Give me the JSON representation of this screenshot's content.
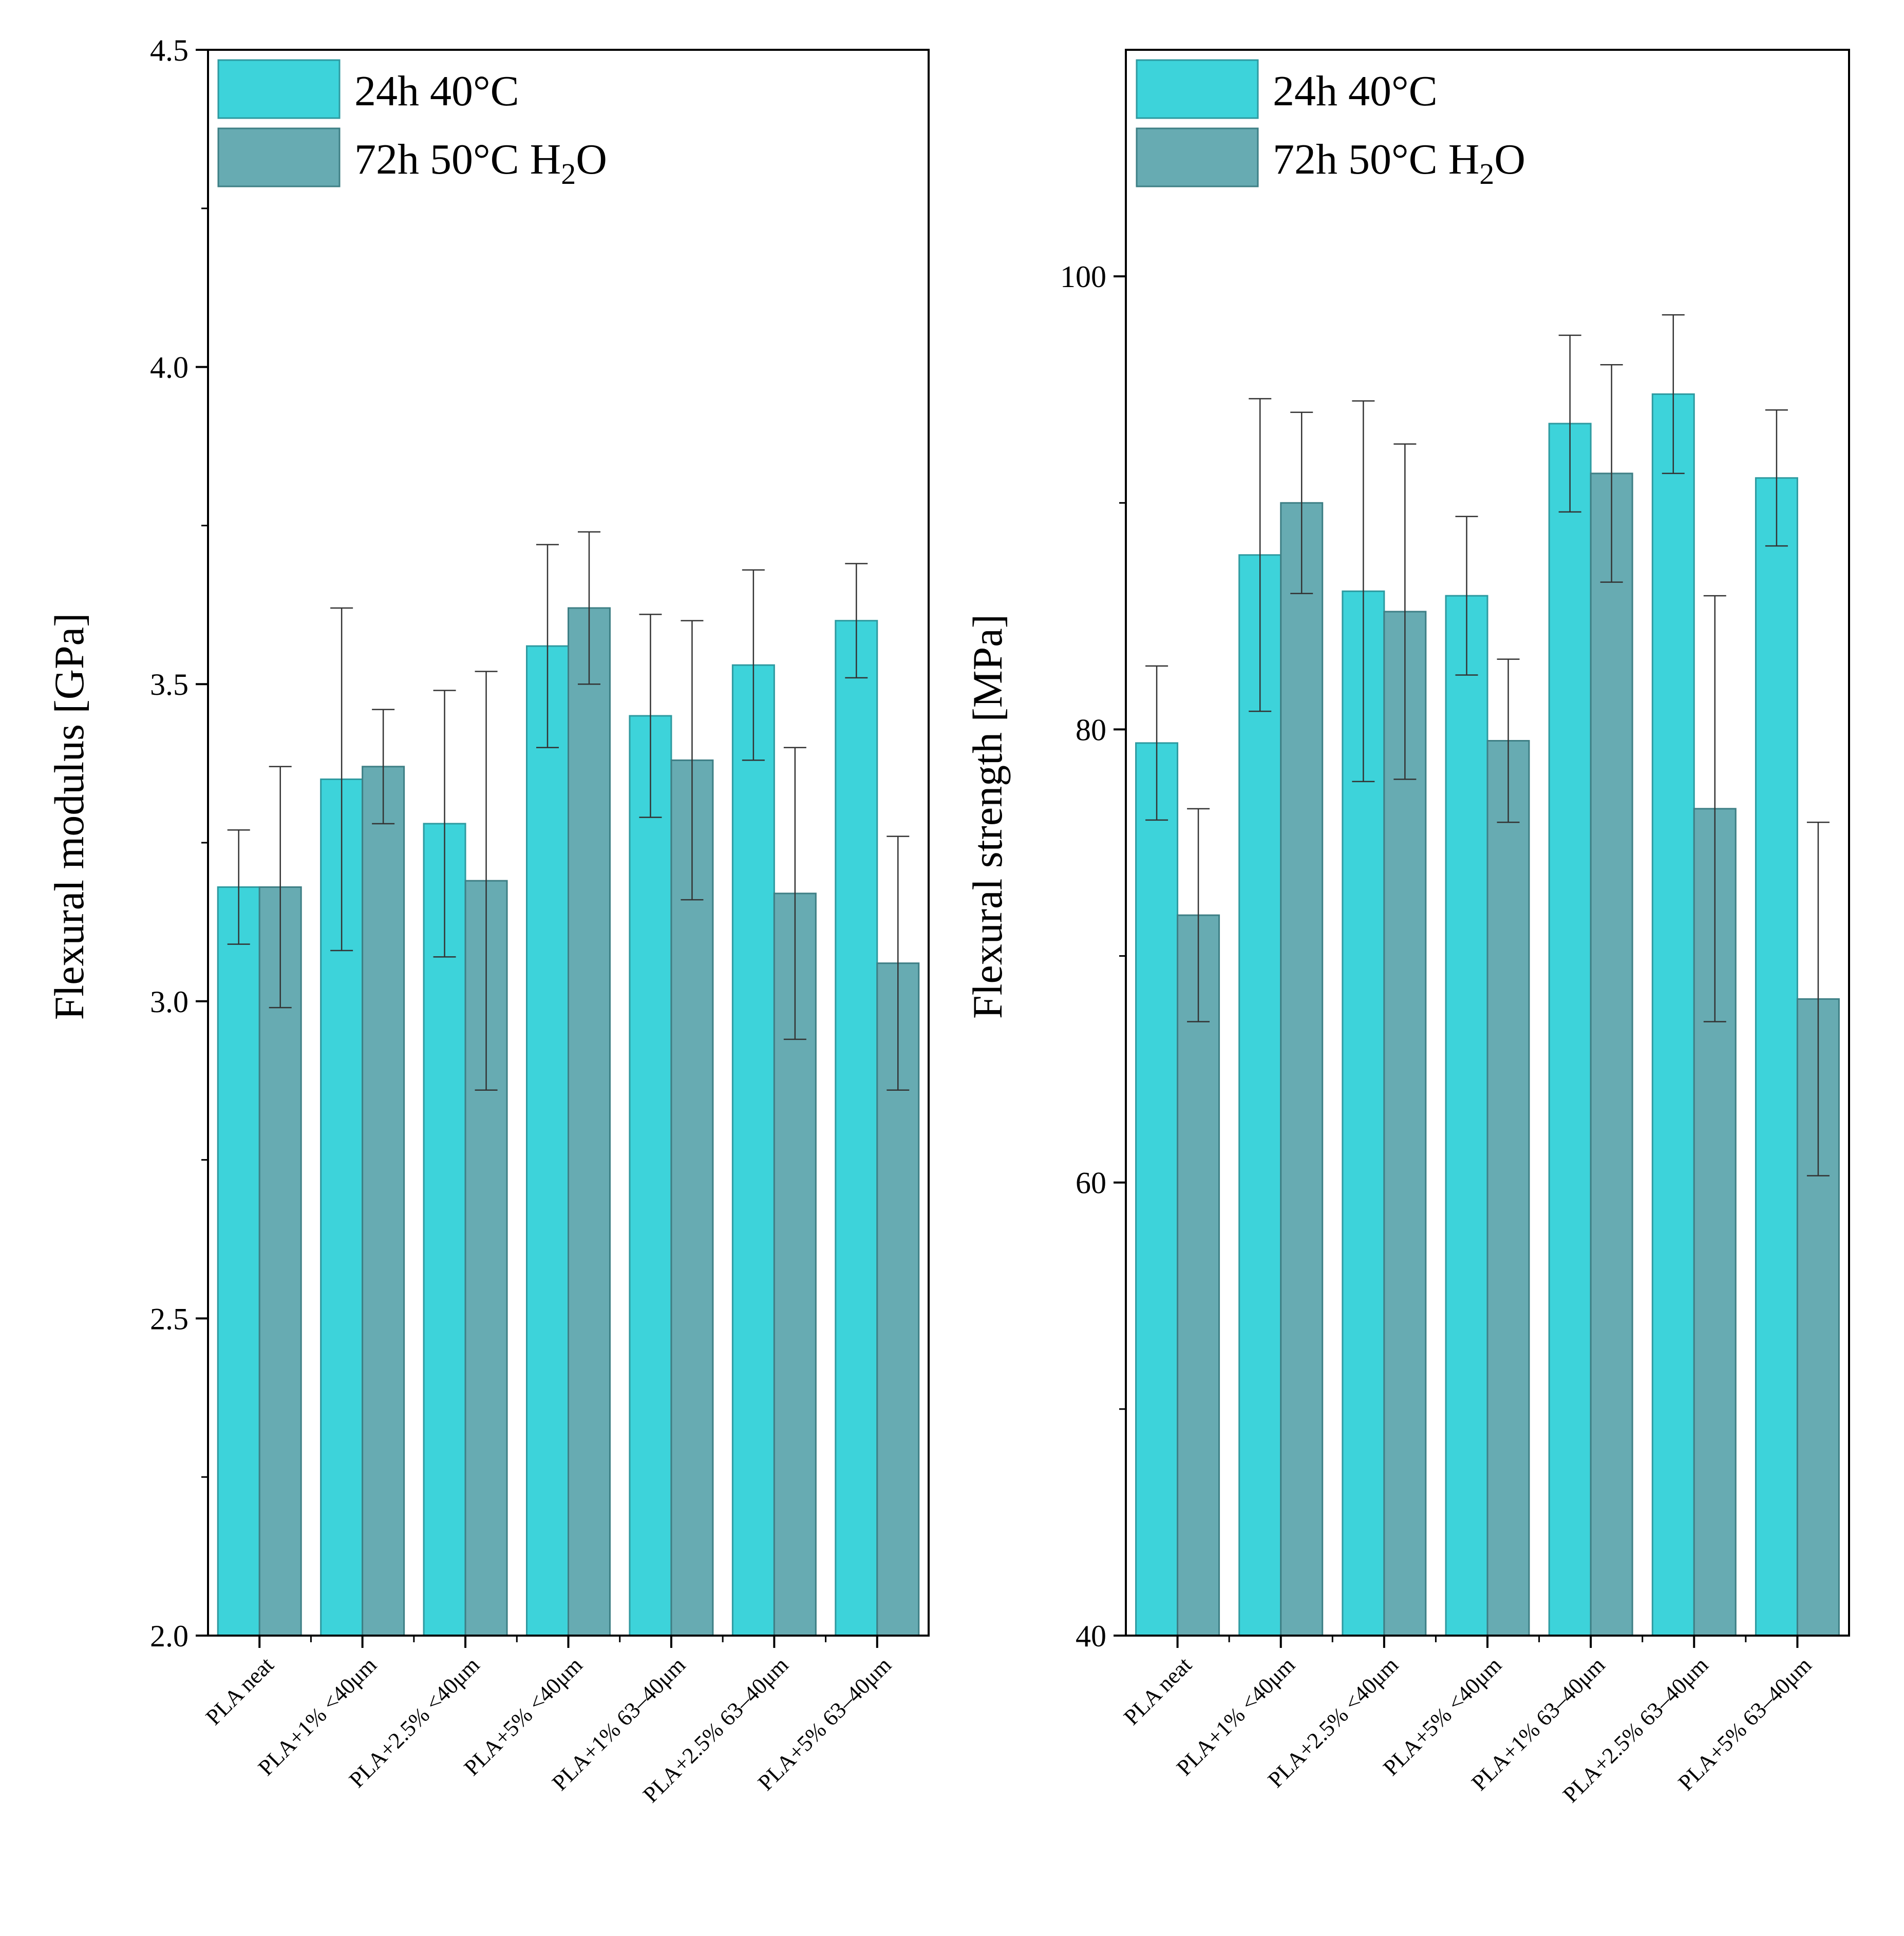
{
  "chart_data": [
    {
      "type": "bar",
      "title": "",
      "xlabel": "",
      "ylabel": "Flexural modulus [GPa]",
      "ylim": [
        2.0,
        4.5
      ],
      "yticks": [
        2.0,
        2.5,
        3.0,
        3.5,
        4.0,
        4.5
      ],
      "ytick_labels": [
        "2.0",
        "2.5",
        "3.0",
        "3.5",
        "4.0",
        "4.5"
      ],
      "minor_ticks": true,
      "grid": false,
      "legend_position": "top-left",
      "categories": [
        "PLA neat",
        "PLA+1% <40μm",
        "PLA+2.5% <40μm",
        "PLA+5% <40μm",
        "PLA+1% 63–40μm",
        "PLA+2.5% 63–40μm",
        "PLA+5% 63–40μm"
      ],
      "series": [
        {
          "name": "24h 40°C",
          "color": "#3DD3DA",
          "values": [
            3.18,
            3.35,
            3.28,
            3.56,
            3.45,
            3.53,
            3.6
          ],
          "errors": [
            0.09,
            0.27,
            0.21,
            0.16,
            0.16,
            0.15,
            0.09
          ]
        },
        {
          "name": "72h 50°C H2O",
          "color": "#67ABB2",
          "values": [
            3.18,
            3.37,
            3.19,
            3.62,
            3.38,
            3.17,
            3.06
          ],
          "errors": [
            0.19,
            0.09,
            0.33,
            0.12,
            0.22,
            0.23,
            0.2
          ]
        }
      ]
    },
    {
      "type": "bar",
      "title": "",
      "xlabel": "",
      "ylabel": "Flexural strength [MPa]",
      "ylim": [
        40,
        110
      ],
      "yticks": [
        40,
        60,
        80,
        100
      ],
      "ytick_labels": [
        "40",
        "60",
        "80",
        "100"
      ],
      "minor_ticks": true,
      "grid": false,
      "legend_position": "top-left",
      "categories": [
        "PLA neat",
        "PLA+1% <40μm",
        "PLA+2.5% <40μm",
        "PLA+5% <40μm",
        "PLA+1% 63–40μm",
        "PLA+2.5% 63–40μm",
        "PLA+5% 63–40μm"
      ],
      "series": [
        {
          "name": "24h 40°C",
          "color": "#3DD3DA",
          "values": [
            79.4,
            87.7,
            86.1,
            85.9,
            93.5,
            94.8,
            91.1
          ],
          "errors": [
            3.4,
            6.9,
            8.4,
            3.5,
            3.9,
            3.5,
            3.0
          ]
        },
        {
          "name": "72h 50°C H2O",
          "color": "#67ABB2",
          "values": [
            71.8,
            90.0,
            85.2,
            79.5,
            91.3,
            76.5,
            68.1
          ],
          "errors": [
            4.7,
            4.0,
            7.4,
            3.6,
            4.8,
            9.4,
            7.8
          ]
        }
      ]
    }
  ],
  "legend": {
    "entry1": "24h 40°C",
    "entry2_prefix": "72h 50°C H",
    "entry2_sub": "2",
    "entry2_suffix": "O"
  }
}
